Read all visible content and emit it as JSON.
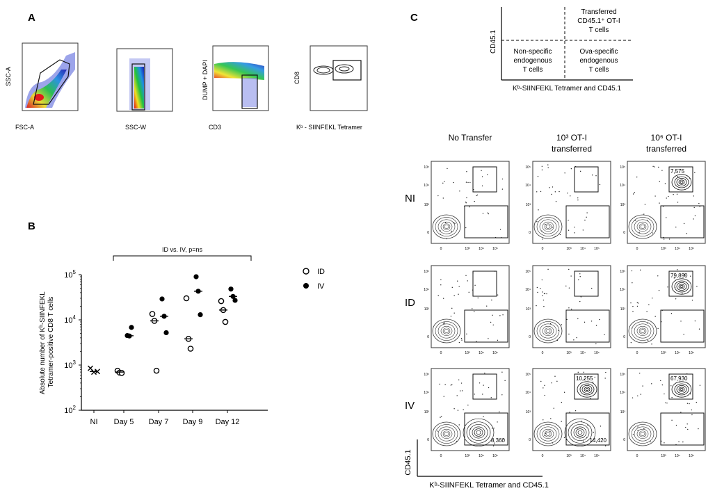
{
  "panel_labels": {
    "a": "A",
    "b": "B",
    "c": "C"
  },
  "panel_a": {
    "plots": [
      {
        "xlabel": "FSC-A",
        "ylabel": "SSC-A"
      },
      {
        "xlabel": "SSC-W",
        "ylabel": ""
      },
      {
        "xlabel": "CD3",
        "ylabel": "DUMP + DAPI"
      },
      {
        "xlabel": "Kᵇ - SIINFEKL Tetramer",
        "ylabel": "CD8"
      }
    ]
  },
  "panel_b": {
    "bracket_label": "ID vs. IV, p=ns",
    "legend": [
      {
        "label": "ID",
        "marker": "open-circle"
      },
      {
        "label": "IV",
        "marker": "filled-circle"
      }
    ],
    "chart_data": {
      "type": "scatter",
      "ylabel": "Absolute number of Kᵇ-SIINFEKL Tetramer-positive CD8 T cells",
      "yscale": "log",
      "ylim": [
        100,
        100000
      ],
      "yticks": [
        {
          "value": 100,
          "base": "10",
          "exp": "2"
        },
        {
          "value": 1000,
          "base": "10",
          "exp": "3"
        },
        {
          "value": 10000,
          "base": "10",
          "exp": "4"
        },
        {
          "value": 100000,
          "base": "10",
          "exp": "5"
        }
      ],
      "categories": [
        "NI",
        "Day 5",
        "Day 7",
        "Day 9",
        "Day 12"
      ],
      "groups": [
        {
          "category": "NI",
          "NI": [
            850,
            700,
            720
          ],
          "ID": [],
          "IV": [],
          "median_ID": null,
          "median_IV": null,
          "median_NI": 720
        },
        {
          "category": "Day 5",
          "ID": [
            750,
            680,
            670
          ],
          "IV": [
            4500,
            4400,
            6800
          ],
          "median_ID": 700,
          "median_IV": 4450
        },
        {
          "category": "Day 7",
          "ID": [
            13500,
            9500,
            750
          ],
          "IV": [
            29000,
            12000,
            5200
          ],
          "median_ID": 9500,
          "median_IV": 12000
        },
        {
          "category": "Day 9",
          "ID": [
            30000,
            3800,
            2300
          ],
          "IV": [
            90000,
            43000,
            13000
          ],
          "median_ID": 3800,
          "median_IV": 43000
        },
        {
          "category": "Day 12",
          "ID": [
            26000,
            16500,
            9000
          ],
          "IV": [
            48000,
            33000,
            27000
          ],
          "median_ID": 16500,
          "median_IV": 33000
        }
      ]
    }
  },
  "panel_c": {
    "schematic": {
      "ylabel": "CD45.1",
      "xlabel": "Kᵇ-SIINFEKL Tetramer and CD45.1",
      "top_right": [
        "Transferred",
        "CD45.1⁺ OT-I",
        "T cells"
      ],
      "bottom_left": [
        "Non-specific",
        "endogenous",
        "T cells"
      ],
      "bottom_right": [
        "Ova-specific",
        "endogenous",
        "T cells"
      ]
    },
    "column_headers": [
      {
        "lines": [
          "No Transfer"
        ]
      },
      {
        "lines": [
          "10³ OT-I",
          "transferred"
        ]
      },
      {
        "lines": [
          "10⁶ OT-I",
          "transferred"
        ]
      }
    ],
    "row_labels": [
      "NI",
      "ID",
      "IV"
    ],
    "axis_ticks": {
      "x": [
        "0",
        "10³",
        "10⁴",
        "10⁵"
      ],
      "y": [
        "0",
        "10³",
        "10⁴",
        "10⁵"
      ]
    },
    "gate_counts": [
      [
        "",
        "",
        "7,575"
      ],
      [
        "",
        "",
        "79,890"
      ],
      [
        "8,360",
        "10,255 | 14,420",
        "67,930"
      ]
    ],
    "grid_counts": [
      [
        {
          "top": "",
          "bottom": ""
        },
        {
          "top": "",
          "bottom": ""
        },
        {
          "top": "7,575",
          "bottom": ""
        }
      ],
      [
        {
          "top": "",
          "bottom": ""
        },
        {
          "top": "",
          "bottom": ""
        },
        {
          "top": "79,890",
          "bottom": ""
        }
      ],
      [
        {
          "top": "",
          "bottom": "8,360"
        },
        {
          "top": "10,255",
          "bottom": "14,420"
        },
        {
          "top": "67,930",
          "bottom": ""
        }
      ]
    ],
    "xlabel": "Kᵇ-SIINFEKL Tetramer and CD45.1",
    "ylabel": "CD45.1"
  }
}
